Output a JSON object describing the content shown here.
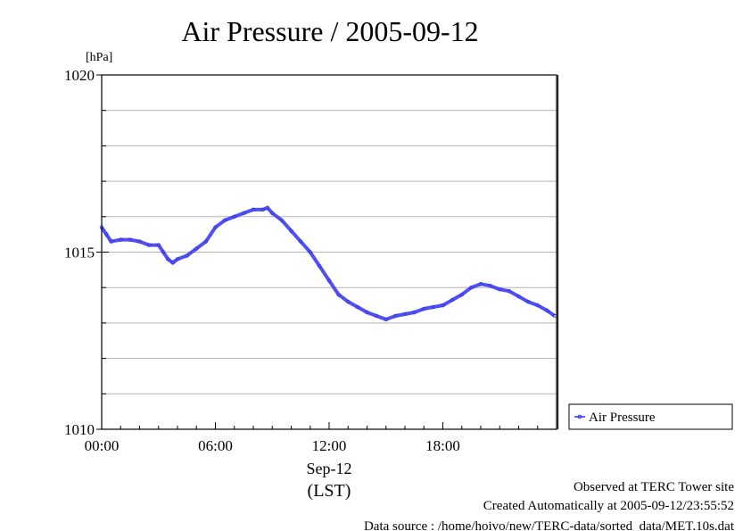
{
  "chart_data": {
    "type": "line",
    "title": "Air Pressure / 2005-09-12",
    "y_unit": "[hPa]",
    "ylim": [
      1010,
      1020
    ],
    "y_ticks": [
      {
        "value": 1010,
        "label": "1010"
      },
      {
        "value": 1015,
        "label": "1015"
      },
      {
        "value": 1020,
        "label": "1020"
      }
    ],
    "y_grid_step": 1,
    "grid": true,
    "xlim_hours": [
      0,
      24
    ],
    "x_ticks": [
      {
        "hour": 0,
        "label": "00:00"
      },
      {
        "hour": 6,
        "label": "06:00"
      },
      {
        "hour": 12,
        "label": "12:00"
      },
      {
        "hour": 18,
        "label": "18:00"
      }
    ],
    "x_date_label": "Sep-12",
    "x_zone_label": "(LST)",
    "legend_placement": "right",
    "colors": {
      "series": "#3333ee",
      "grid": "#b4b4b4"
    },
    "series": [
      {
        "name": "Air Pressure",
        "x": [
          0.0,
          0.25,
          0.5,
          1.0,
          1.5,
          2.0,
          2.5,
          3.0,
          3.25,
          3.5,
          3.75,
          4.0,
          4.5,
          5.0,
          5.5,
          6.0,
          6.5,
          7.0,
          7.5,
          8.0,
          8.5,
          8.75,
          9.0,
          9.5,
          10.0,
          10.5,
          11.0,
          11.5,
          12.0,
          12.5,
          13.0,
          13.5,
          14.0,
          14.5,
          15.0,
          15.5,
          16.0,
          16.5,
          17.0,
          17.5,
          18.0,
          18.5,
          19.0,
          19.5,
          20.0,
          20.5,
          21.0,
          21.5,
          22.0,
          22.5,
          23.0,
          23.5,
          23.9
        ],
        "y": [
          1015.7,
          1015.5,
          1015.3,
          1015.35,
          1015.35,
          1015.3,
          1015.2,
          1015.2,
          1015.0,
          1014.8,
          1014.7,
          1014.8,
          1014.9,
          1015.1,
          1015.3,
          1015.7,
          1015.9,
          1016.0,
          1016.1,
          1016.2,
          1016.2,
          1016.25,
          1016.1,
          1015.9,
          1015.6,
          1015.3,
          1015.0,
          1014.6,
          1014.2,
          1013.8,
          1013.6,
          1013.45,
          1013.3,
          1013.2,
          1013.1,
          1013.2,
          1013.25,
          1013.3,
          1013.4,
          1013.45,
          1013.5,
          1013.65,
          1013.8,
          1014.0,
          1014.1,
          1014.05,
          1013.95,
          1013.9,
          1013.75,
          1013.6,
          1013.5,
          1013.35,
          1013.2
        ]
      }
    ],
    "footer": {
      "observed": "Observed at TERC Tower site",
      "created": "Created Automatically at 2005-09-12/23:55:52",
      "source": "Data source : /home/hoivo/new/TERC-data/sorted_data/MET.10s.dat"
    }
  }
}
